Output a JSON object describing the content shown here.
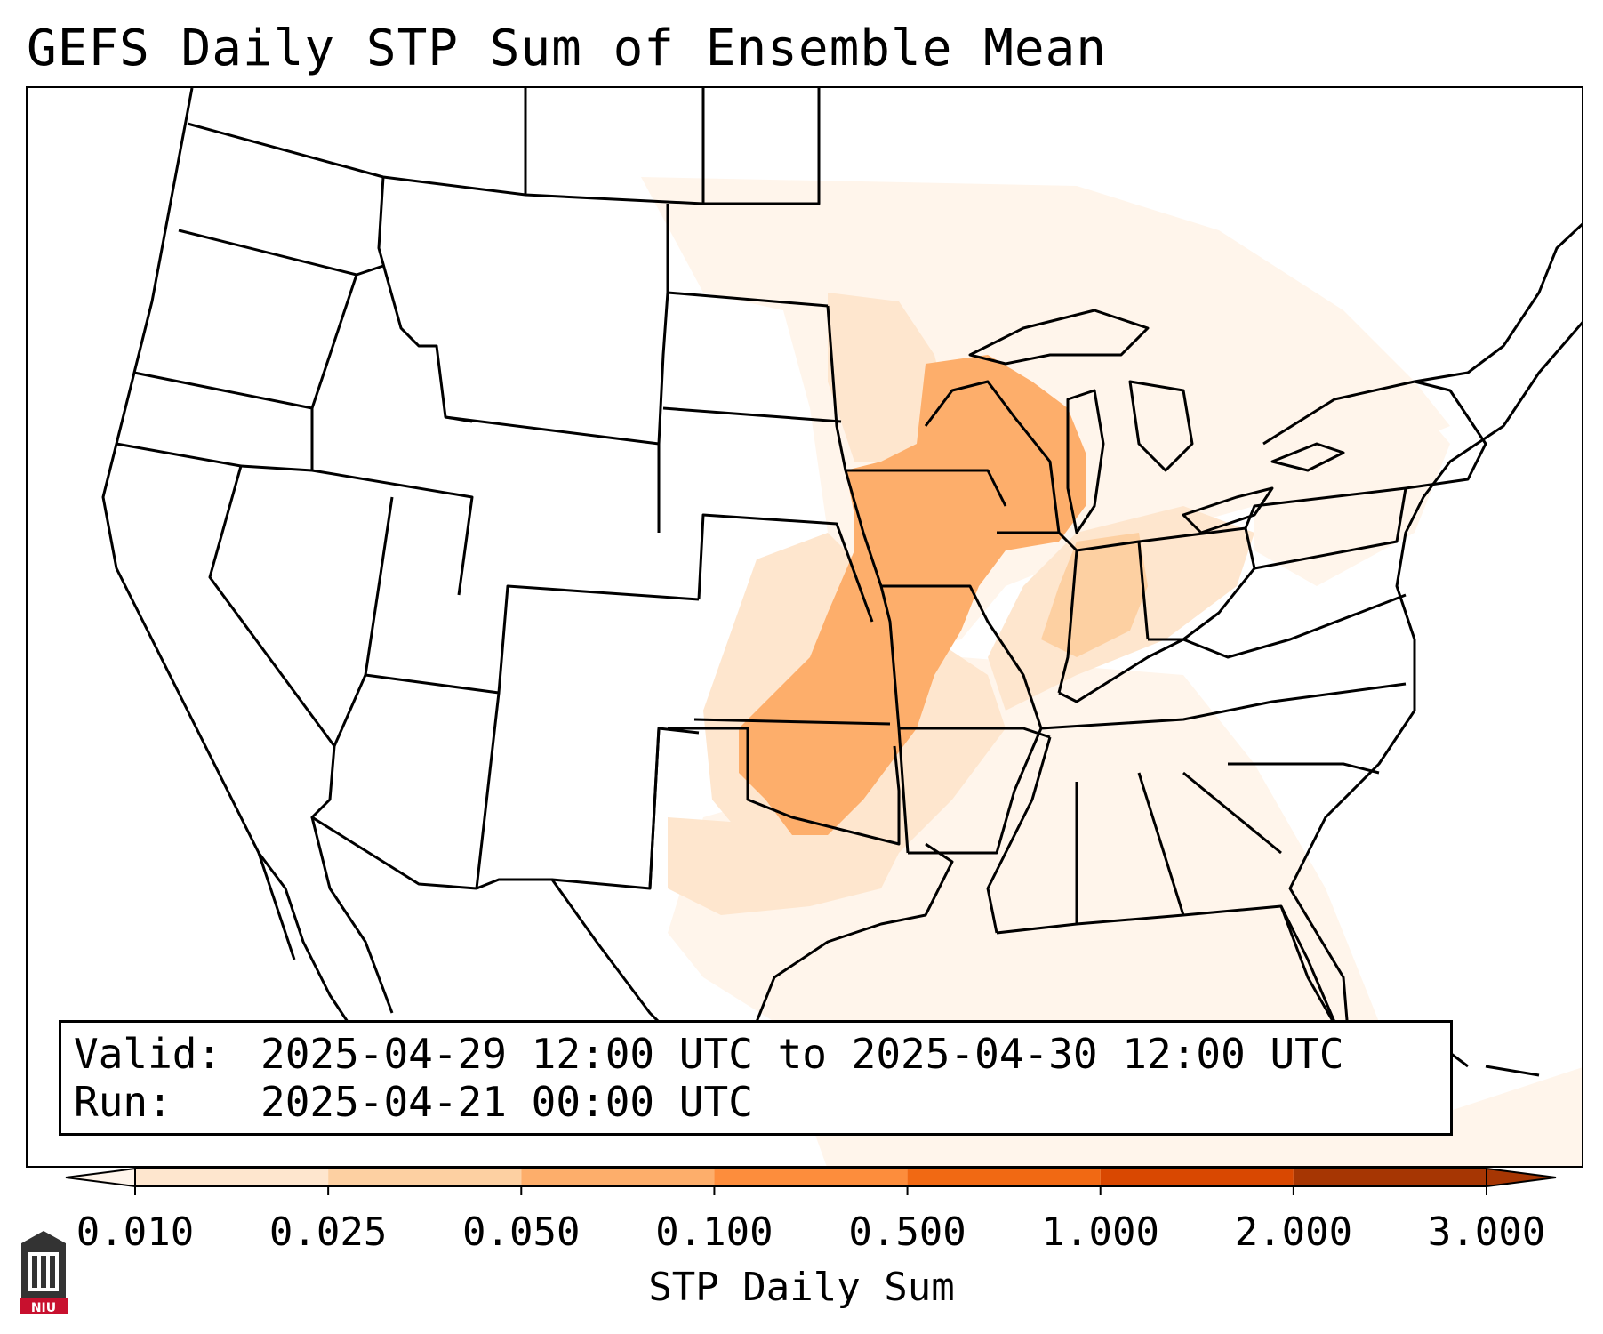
{
  "title": "GEFS Daily STP Sum of Ensemble Mean",
  "info": {
    "valid_label": "Valid:",
    "valid_value": "2025-04-29 12:00 UTC to 2025-04-30 12:00 UTC",
    "run_label": "Run:",
    "run_value": "2025-04-21 00:00 UTC"
  },
  "colorbar": {
    "label": "STP Daily Sum",
    "ticks": [
      "0.010",
      "0.025",
      "0.050",
      "0.100",
      "0.500",
      "1.000",
      "2.000",
      "3.000"
    ],
    "colors": [
      "#fff5eb",
      "#fee6ce",
      "#fdd0a2",
      "#fdae6b",
      "#fd8d3c",
      "#f16913",
      "#d94801",
      "#a63603"
    ],
    "extend": "both"
  },
  "map": {
    "projection": "Lambert Conformal",
    "region": "Continental United States",
    "shading_colors": {
      "light": "#fff5eb",
      "low": "#fee6ce",
      "medium": "#fdd0a2",
      "high": "#fdae6b"
    }
  },
  "logo": {
    "text": "NIU",
    "color": "#c8102e"
  }
}
